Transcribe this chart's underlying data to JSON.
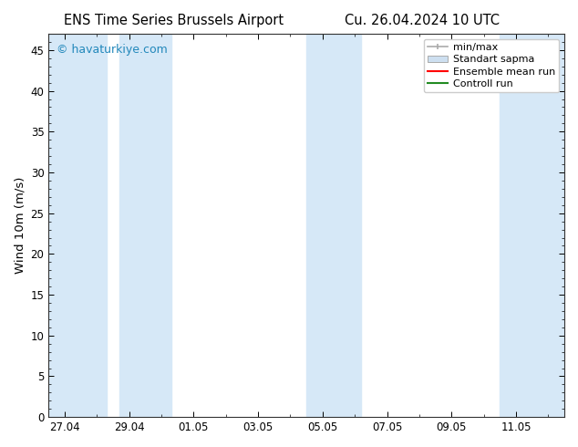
{
  "title_left": "ENS Time Series Brussels Airport",
  "title_right": "Cu. 26.04.2024 10 UTC",
  "ylabel": "Wind 10m (m/s)",
  "watermark": "© havaturkiye.com",
  "ylim": [
    0,
    47
  ],
  "yticks": [
    0,
    5,
    10,
    15,
    20,
    25,
    30,
    35,
    40,
    45
  ],
  "xtick_labels": [
    "27.04",
    "29.04",
    "01.05",
    "03.05",
    "05.05",
    "07.05",
    "09.05",
    "11.05"
  ],
  "bg_color": "#ffffff",
  "plot_bg_color": "#ffffff",
  "shaded_band_color": "#d6e8f7",
  "legend_labels": [
    "min/max",
    "Standart sapma",
    "Ensemble mean run",
    "Controll run"
  ],
  "minmax_color": "#aaaaaa",
  "std_fill_color": "#cddff0",
  "std_edge_color": "#aaaaaa",
  "ensemble_color": "#ff0000",
  "control_color": "#228B22",
  "spine_color": "#333333",
  "grid_color": "#dddddd",
  "watermark_color": "#2288bb",
  "title_fontsize": 10.5,
  "tick_fontsize": 8.5,
  "ylabel_fontsize": 9.5,
  "watermark_fontsize": 9,
  "legend_fontsize": 8
}
